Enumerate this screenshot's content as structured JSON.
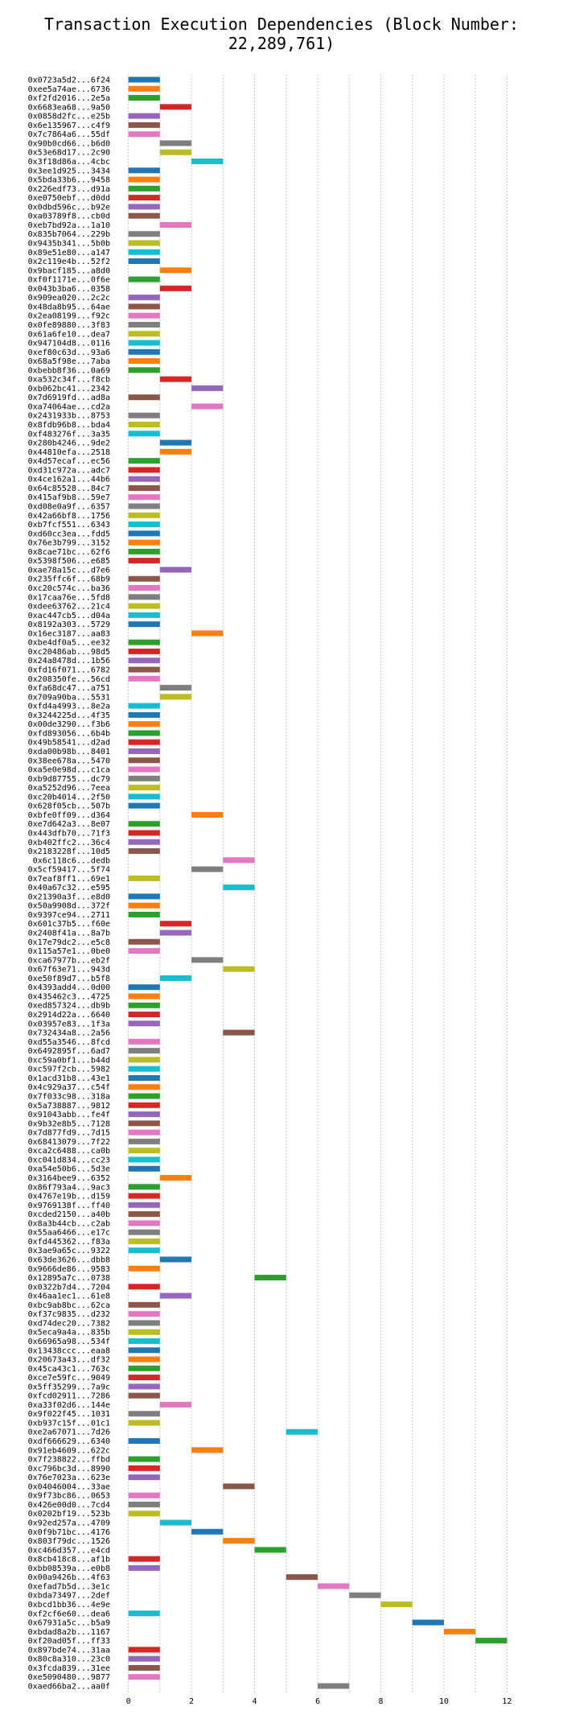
{
  "chart_data": {
    "type": "bar",
    "title": "Transaction Execution Dependencies (Block Number: 22,289,761)",
    "xlabel": "",
    "ylabel": "",
    "xlim": [
      -0.5,
      12.5
    ],
    "xticks": [
      0,
      2,
      4,
      6,
      8,
      10,
      12
    ],
    "xtick_labels": [
      "0",
      "2",
      "4",
      "6",
      "8",
      "10",
      "12"
    ],
    "grid": "vertical, dotted",
    "colors": [
      "#1f77b4",
      "#ff7f0e",
      "#2ca02c",
      "#d62728",
      "#9467bd",
      "#8c564b",
      "#e377c2",
      "#7f7f7f",
      "#bcbd22",
      "#17becf"
    ],
    "transactions": [
      {
        "label": "0x0723a5d2...6f24",
        "start": 0
      },
      {
        "label": "0xee5a74ae...6736",
        "start": 0
      },
      {
        "label": "0xf2fd2016...2e5a",
        "start": 0
      },
      {
        "label": "0x6683ea68...9a50",
        "start": 1
      },
      {
        "label": "0x0858d2fc...e25b",
        "start": 0
      },
      {
        "label": "0x6e135967...c4f9",
        "start": 0
      },
      {
        "label": "0x7c7864a6...55df",
        "start": 0
      },
      {
        "label": "0x90b0cd66...b6d0",
        "start": 1
      },
      {
        "label": "0x53e68d17...2c90",
        "start": 1
      },
      {
        "label": "0x3f18d86a...4cbc",
        "start": 2
      },
      {
        "label": "0x3ee1d925...3434",
        "start": 0
      },
      {
        "label": "0x5bda33b6...9458",
        "start": 0
      },
      {
        "label": "0x226edf73...d91a",
        "start": 0
      },
      {
        "label": "0xe0750ebf...d0dd",
        "start": 0
      },
      {
        "label": "0x0dbd596c...b92e",
        "start": 0
      },
      {
        "label": "0xa03789f8...cb0d",
        "start": 0
      },
      {
        "label": "0xeb7bd92a...1a10",
        "start": 1
      },
      {
        "label": "0x835b7064...229b",
        "start": 0
      },
      {
        "label": "0x9435b341...5b0b",
        "start": 0
      },
      {
        "label": "0x89e51e80...a147",
        "start": 0
      },
      {
        "label": "0x2c119e4b...52f2",
        "start": 0
      },
      {
        "label": "0x9bacf185...a8d0",
        "start": 1
      },
      {
        "label": "0xf0f1171e...0f6e",
        "start": 0
      },
      {
        "label": "0x043b3ba6...0358",
        "start": 1
      },
      {
        "label": "0x909ea020...2c2c",
        "start": 0
      },
      {
        "label": "0x48da8b95...64ae",
        "start": 0
      },
      {
        "label": "0x2ea08199...f92c",
        "start": 0
      },
      {
        "label": "0x0fe89880...3f83",
        "start": 0
      },
      {
        "label": "0x61a6fe10...dea7",
        "start": 0
      },
      {
        "label": "0x947104d8...0116",
        "start": 0
      },
      {
        "label": "0xef80c63d...93a6",
        "start": 0
      },
      {
        "label": "0x68a5f98e...7aba",
        "start": 0
      },
      {
        "label": "0xbebb8f36...0a69",
        "start": 0
      },
      {
        "label": "0xa532c34f...f8cb",
        "start": 1
      },
      {
        "label": "0xb062bc41...2342",
        "start": 2
      },
      {
        "label": "0x7d6919fd...ad8a",
        "start": 0
      },
      {
        "label": "0xa74064ae...cd2a",
        "start": 2
      },
      {
        "label": "0x2431933b...8753",
        "start": 0
      },
      {
        "label": "0x8fdb96b8...bda4",
        "start": 0
      },
      {
        "label": "0xf483276f...3a35",
        "start": 0
      },
      {
        "label": "0x280b4246...9de2",
        "start": 1
      },
      {
        "label": "0x44810efa...2518",
        "start": 1
      },
      {
        "label": "0x4d57ecaf...ec56",
        "start": 0
      },
      {
        "label": "0xd31c972a...adc7",
        "start": 0
      },
      {
        "label": "0x4ce162a1...44b6",
        "start": 0
      },
      {
        "label": "0x64c85528...84c7",
        "start": 0
      },
      {
        "label": "0x415af9b8...59e7",
        "start": 0
      },
      {
        "label": "0xd08e0a9f...6357",
        "start": 0
      },
      {
        "label": "0x42a66bf8...1756",
        "start": 0
      },
      {
        "label": "0xb7fcf551...6343",
        "start": 0
      },
      {
        "label": "0xd60cc3ea...fdd5",
        "start": 0
      },
      {
        "label": "0x76e3b799...3152",
        "start": 0
      },
      {
        "label": "0x8cae71bc...62f6",
        "start": 0
      },
      {
        "label": "0x5398f506...e685",
        "start": 0
      },
      {
        "label": "0xae78a15c...d7e6",
        "start": 1
      },
      {
        "label": "0x235ffc6f...68b9",
        "start": 0
      },
      {
        "label": "0xc20c574c...ba36",
        "start": 0
      },
      {
        "label": "0x17caa76e...5fd8",
        "start": 0
      },
      {
        "label": "0xdee63762...21c4",
        "start": 0
      },
      {
        "label": "0xac447cb5...d04a",
        "start": 0
      },
      {
        "label": "0x8192a303...5729",
        "start": 0
      },
      {
        "label": "0x16ec3187...aa83",
        "start": 2
      },
      {
        "label": "0xbe4df0a5...ee32",
        "start": 0
      },
      {
        "label": "0xc20486ab...98d5",
        "start": 0
      },
      {
        "label": "0x24a8478d...1b56",
        "start": 0
      },
      {
        "label": "0xfd16f071...6782",
        "start": 0
      },
      {
        "label": "0x208350fe...56cd",
        "start": 0
      },
      {
        "label": "0xfa68dc47...a751",
        "start": 1
      },
      {
        "label": "0x709a90ba...5531",
        "start": 1
      },
      {
        "label": "0xfd4a4993...8e2a",
        "start": 0
      },
      {
        "label": "0x3244225d...4f35",
        "start": 0
      },
      {
        "label": "0x00de3290...f3b6",
        "start": 0
      },
      {
        "label": "0xfd893056...6b4b",
        "start": 0
      },
      {
        "label": "0x49b58541...d2ad",
        "start": 0
      },
      {
        "label": "0xda00b98b...8401",
        "start": 0
      },
      {
        "label": "0x38ee678a...5470",
        "start": 0
      },
      {
        "label": "0xa5e0e98d...c1ca",
        "start": 0
      },
      {
        "label": "0xb9d87755...dc79",
        "start": 0
      },
      {
        "label": "0xa5252d96...7eea",
        "start": 0
      },
      {
        "label": "0xc20b4014...2f50",
        "start": 0
      },
      {
        "label": "0x628f05cb...507b",
        "start": 0
      },
      {
        "label": "0xbfe0ff09...d364",
        "start": 2
      },
      {
        "label": "0xe7d642a3...8e07",
        "start": 0
      },
      {
        "label": "0x443dfb70...71f3",
        "start": 0
      },
      {
        "label": "0xb402ffc2...36c4",
        "start": 0
      },
      {
        "label": "0x2183228f...10d5",
        "start": 0
      },
      {
        "label": "0x6c118c6...dedb",
        "start": 3
      },
      {
        "label": "0x5cf59417...5f74",
        "start": 2
      },
      {
        "label": "0x7eaf8ff1...69e1",
        "start": 0
      },
      {
        "label": "0x40a67c32...e595",
        "start": 3
      },
      {
        "label": "0x21390a3f...e8d0",
        "start": 0
      },
      {
        "label": "0x50a9908d...372f",
        "start": 0
      },
      {
        "label": "0x9397ce94...2711",
        "start": 0
      },
      {
        "label": "0x601c37b5...f60e",
        "start": 1
      },
      {
        "label": "0x2408f41a...8a7b",
        "start": 1
      },
      {
        "label": "0x17e79dc2...e5c8",
        "start": 0
      },
      {
        "label": "0x115a57e1...0be0",
        "start": 0
      },
      {
        "label": "0xca67977b...eb2f",
        "start": 2
      },
      {
        "label": "0x67f63e71...943d",
        "start": 3
      },
      {
        "label": "0xe50f89d7...b5f8",
        "start": 1
      },
      {
        "label": "0x4393add4...0d00",
        "start": 0
      },
      {
        "label": "0x435462c3...4725",
        "start": 0
      },
      {
        "label": "0xed857324...db9b",
        "start": 0
      },
      {
        "label": "0x2914d22a...6640",
        "start": 0
      },
      {
        "label": "0x03957e83...1f3a",
        "start": 0
      },
      {
        "label": "0x732434a8...2a56",
        "start": 3
      },
      {
        "label": "0xd55a3546...8fcd",
        "start": 0
      },
      {
        "label": "0x6492895f...6ad7",
        "start": 0
      },
      {
        "label": "0xc59a0bf1...b44d",
        "start": 0
      },
      {
        "label": "0xc597f2cb...5982",
        "start": 0
      },
      {
        "label": "0x1acd31b8...43e1",
        "start": 0
      },
      {
        "label": "0x4c929a37...c54f",
        "start": 0
      },
      {
        "label": "0x7f033c98...318a",
        "start": 0
      },
      {
        "label": "0x5a738887...9812",
        "start": 0
      },
      {
        "label": "0x91043abb...fe4f",
        "start": 0
      },
      {
        "label": "0x9b32e8b5...7128",
        "start": 0
      },
      {
        "label": "0x7d877fd9...7d15",
        "start": 0
      },
      {
        "label": "0x68413079...7f22",
        "start": 0
      },
      {
        "label": "0xca2c6488...ca0b",
        "start": 0
      },
      {
        "label": "0xc041d834...cc23",
        "start": 0
      },
      {
        "label": "0xa54e50b6...5d3e",
        "start": 0
      },
      {
        "label": "0x3164bee9...6352",
        "start": 1
      },
      {
        "label": "0x86f793a4...9ac3",
        "start": 0
      },
      {
        "label": "0x4767e19b...d159",
        "start": 0
      },
      {
        "label": "0x9769138f...ff40",
        "start": 0
      },
      {
        "label": "0xcded2150...a40b",
        "start": 0
      },
      {
        "label": "0x8a3b44cb...c2ab",
        "start": 0
      },
      {
        "label": "0x55aa6466...e17c",
        "start": 0
      },
      {
        "label": "0xfd445362...f83a",
        "start": 0
      },
      {
        "label": "0x3ae9a65c...9322",
        "start": 0
      },
      {
        "label": "0x63de3626...dbb8",
        "start": 1
      },
      {
        "label": "0x9666de86...9583",
        "start": 0
      },
      {
        "label": "0x12895a7c...0738",
        "start": 4
      },
      {
        "label": "0x0322b7d4...7204",
        "start": 0
      },
      {
        "label": "0x46aa1ec1...61e8",
        "start": 1
      },
      {
        "label": "0xbc9ab8bc...62ca",
        "start": 0
      },
      {
        "label": "0xf37c9835...d232",
        "start": 0
      },
      {
        "label": "0xd74dec20...7382",
        "start": 0
      },
      {
        "label": "0x5eca9a4a...835b",
        "start": 0
      },
      {
        "label": "0x66965a98...534f",
        "start": 0
      },
      {
        "label": "0x13438ccc...eaa8",
        "start": 0
      },
      {
        "label": "0x20673a43...df32",
        "start": 0
      },
      {
        "label": "0x45ca43c1...763c",
        "start": 0
      },
      {
        "label": "0xce7e59fc...9049",
        "start": 0
      },
      {
        "label": "0x5ff35299...7a9c",
        "start": 0
      },
      {
        "label": "0xfcd02911...7286",
        "start": 0
      },
      {
        "label": "0xa33f02d6...144e",
        "start": 1
      },
      {
        "label": "0x9f022f45...1031",
        "start": 0
      },
      {
        "label": "0xb937c15f...01c1",
        "start": 0
      },
      {
        "label": "0xe2a67071...7d26",
        "start": 5
      },
      {
        "label": "0xdf666629...6340",
        "start": 0
      },
      {
        "label": "0x91eb4609...622c",
        "start": 2
      },
      {
        "label": "0x7f238822...ffbd",
        "start": 0
      },
      {
        "label": "0xc796bc3d...8990",
        "start": 0
      },
      {
        "label": "0x76e7023a...623e",
        "start": 0
      },
      {
        "label": "0x04046004...33ae",
        "start": 3
      },
      {
        "label": "0x9f73bc86...0653",
        "start": 0
      },
      {
        "label": "0x426e00d0...7cd4",
        "start": 0
      },
      {
        "label": "0x0202bf19...523b",
        "start": 0
      },
      {
        "label": "0x92ed257a...4709",
        "start": 1
      },
      {
        "label": "0x0f9b71bc...4176",
        "start": 2
      },
      {
        "label": "0x803f79dc...1526",
        "start": 3
      },
      {
        "label": "0xc466d357...e4cd",
        "start": 4
      },
      {
        "label": "0x8cb418c8...af1b",
        "start": 0
      },
      {
        "label": "0xbb08539a...e0b8",
        "start": 0
      },
      {
        "label": "0x00a9426b...4f63",
        "start": 5
      },
      {
        "label": "0xefad7b5d...3e1c",
        "start": 6
      },
      {
        "label": "0xbda73497...2def",
        "start": 7
      },
      {
        "label": "0xbcd1bb36...4e9e",
        "start": 8
      },
      {
        "label": "0xf2cf6e60...dea6",
        "start": 0
      },
      {
        "label": "0x67931a5c...b5a9",
        "start": 9
      },
      {
        "label": "0xbdad8a2b...1167",
        "start": 10
      },
      {
        "label": "0xf20ad05f...ff33",
        "start": 11
      },
      {
        "label": "0x897bde74...31aa",
        "start": 0
      },
      {
        "label": "0x80c8a310...23c0",
        "start": 0
      },
      {
        "label": "0x3fcda839...31ee",
        "start": 0
      },
      {
        "label": "0xe5090480...9877",
        "start": 0
      },
      {
        "label": "0xaed66ba2...aa0f",
        "start": 6
      }
    ]
  }
}
